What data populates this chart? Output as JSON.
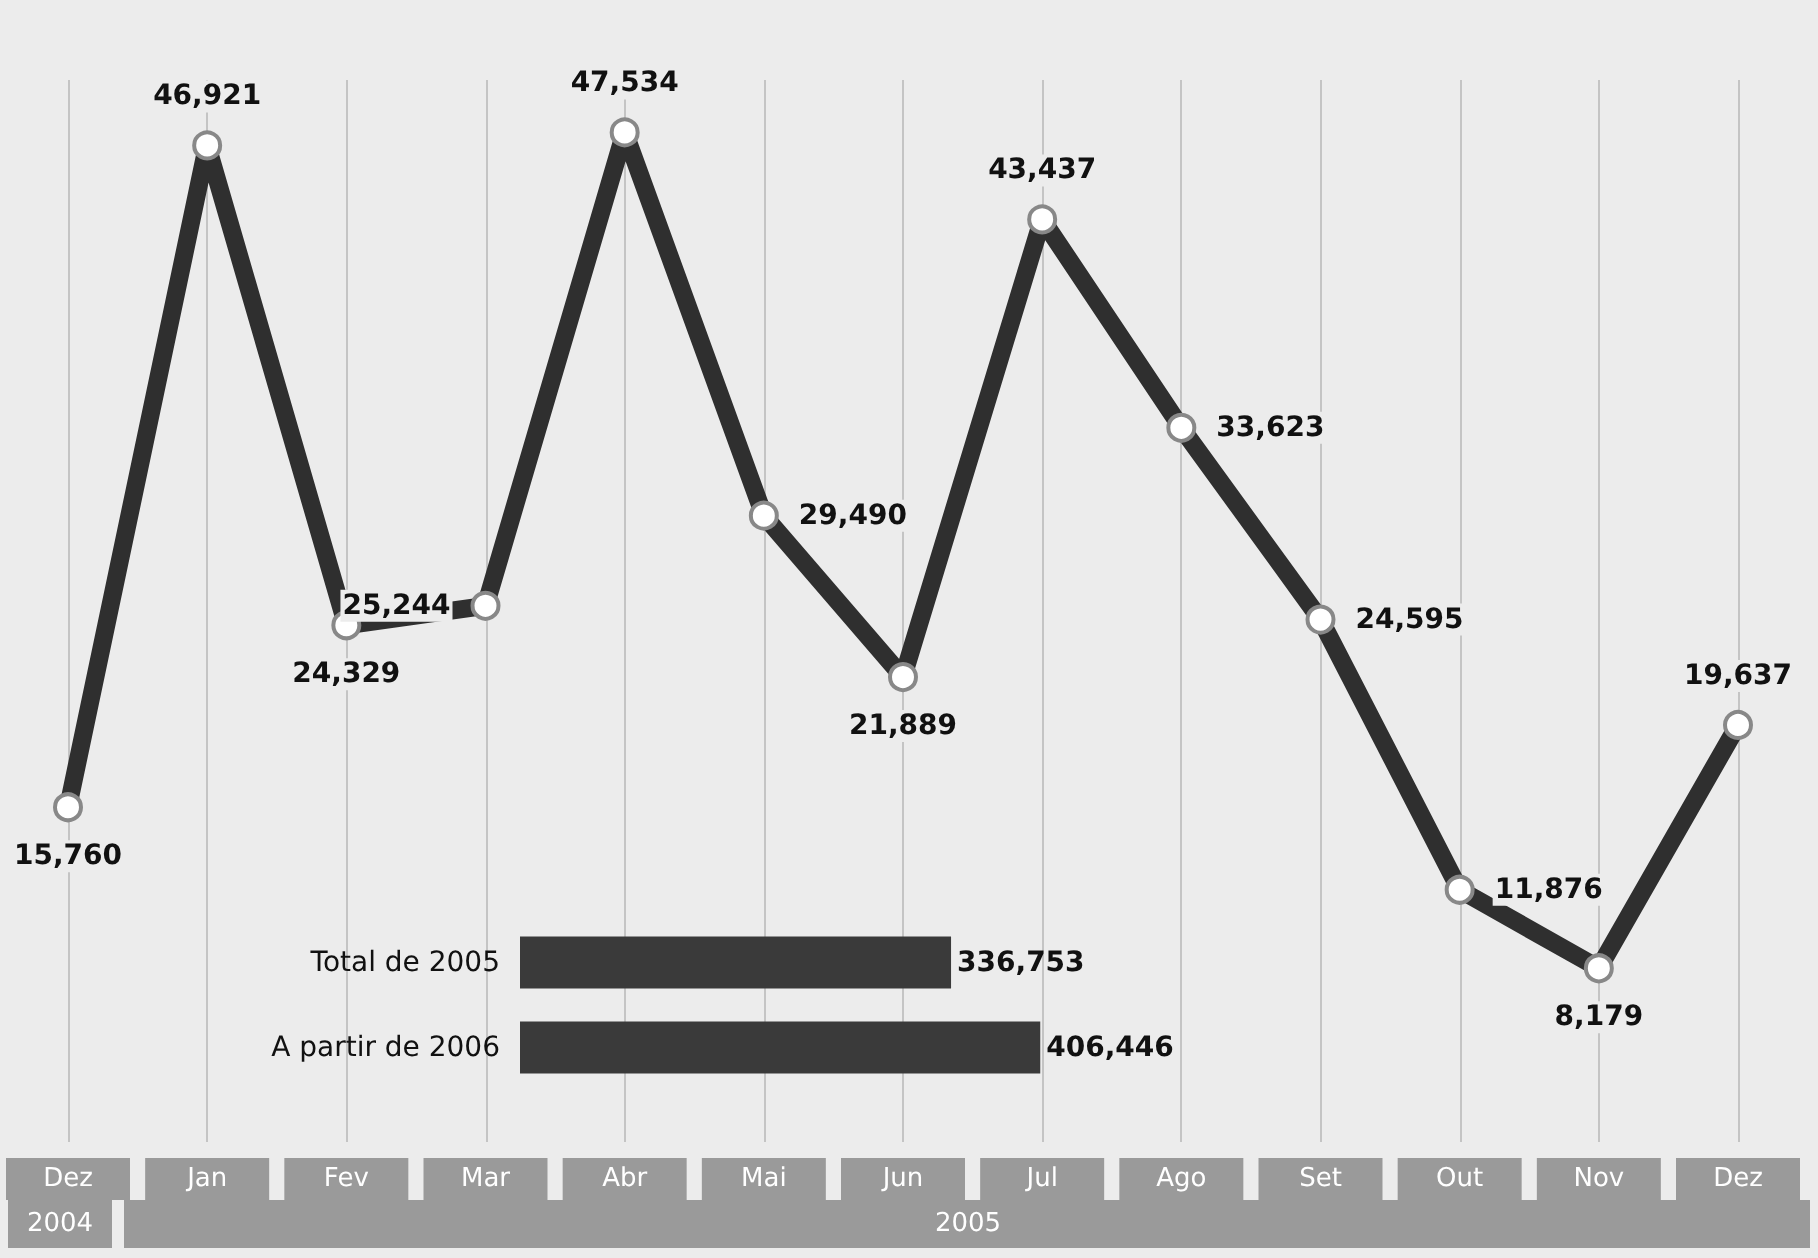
{
  "chart_data": [
    {
      "type": "line",
      "categories": [
        "Dez",
        "Jan",
        "Fev",
        "Mar",
        "Abr",
        "Mai",
        "Jun",
        "Jul",
        "Ago",
        "Set",
        "Out",
        "Nov",
        "Dez"
      ],
      "series": [
        {
          "color": "#2f2f2f",
          "values": [
            15760,
            46921,
            24329,
            25244,
            47534,
            29490,
            21889,
            43437,
            33623,
            24595,
            11876,
            8179,
            19637
          ],
          "value_labels": [
            "15,760",
            "46,921",
            "24,329",
            "25,244",
            "47,534",
            "29,490",
            "21,889",
            "43,437",
            "33,623",
            "24,595",
            "11,876",
            "8,179",
            "19,637"
          ]
        }
      ],
      "grid": "x",
      "marker": "circle",
      "annotations": [
        "2004",
        "2005"
      ]
    },
    {
      "type": "bar",
      "orientation": "horizontal",
      "categories": [
        "Total de 2005",
        "A partir de 2006"
      ],
      "values": [
        336753,
        406446
      ],
      "value_labels": [
        "336,753",
        "406,446"
      ],
      "color": "#3a3a3a"
    }
  ]
}
